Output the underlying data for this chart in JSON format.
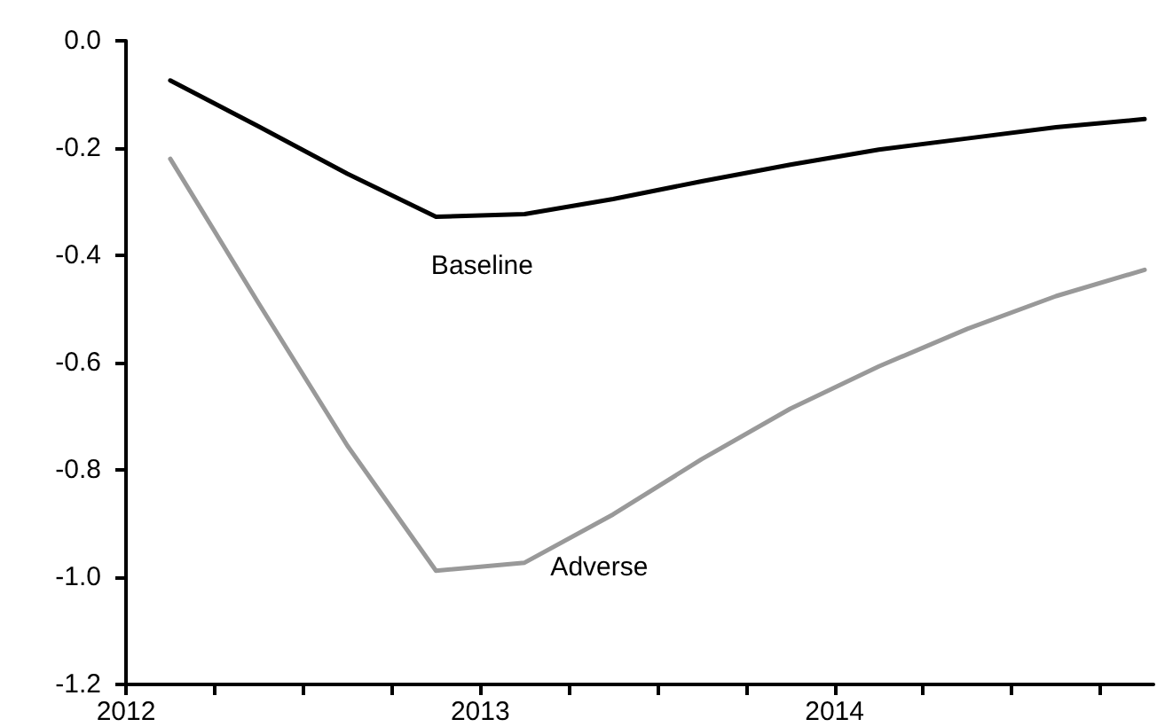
{
  "chart_data": {
    "type": "line",
    "x": [
      2012.125,
      2012.375,
      2012.625,
      2012.875,
      2013.125,
      2013.375,
      2013.625,
      2013.875,
      2014.125,
      2014.375,
      2014.625,
      2014.875
    ],
    "series": [
      {
        "name": "Baseline",
        "color": "#000000",
        "values": [
          -0.074,
          -0.16,
          -0.248,
          -0.328,
          -0.323,
          -0.295,
          -0.262,
          -0.231,
          -0.203,
          -0.182,
          -0.161,
          -0.146
        ]
      },
      {
        "name": "Adverse",
        "color": "#999999",
        "values": [
          -0.22,
          -0.49,
          -0.755,
          -0.988,
          -0.973,
          -0.883,
          -0.78,
          -0.686,
          -0.607,
          -0.537,
          -0.476,
          -0.427
        ]
      }
    ],
    "xlim": [
      2012,
      2014.9
    ],
    "xticks": [
      {
        "value": 2012,
        "label": "2012"
      },
      {
        "value": 2012.25,
        "label": null
      },
      {
        "value": 2012.5,
        "label": null
      },
      {
        "value": 2012.75,
        "label": null
      },
      {
        "value": 2013,
        "label": "2013"
      },
      {
        "value": 2013.25,
        "label": null
      },
      {
        "value": 2013.5,
        "label": null
      },
      {
        "value": 2013.75,
        "label": null
      },
      {
        "value": 2014,
        "label": "2014"
      },
      {
        "value": 2014.25,
        "label": null
      },
      {
        "value": 2014.5,
        "label": null
      },
      {
        "value": 2014.75,
        "label": null
      }
    ],
    "ylim": [
      -1.2,
      0
    ],
    "yticks": [
      {
        "value": -1.2,
        "label": "-1.2"
      },
      {
        "value": -1.0,
        "label": "-1.0"
      },
      {
        "value": -0.8,
        "label": "-0.8"
      },
      {
        "value": -0.6,
        "label": "-0.6"
      },
      {
        "value": -0.4,
        "label": "-0.4"
      },
      {
        "value": -0.2,
        "label": "-0.2"
      },
      {
        "value": 0,
        "label": "0.0"
      }
    ],
    "grid": false,
    "marker": "none",
    "line_style": "solid"
  }
}
